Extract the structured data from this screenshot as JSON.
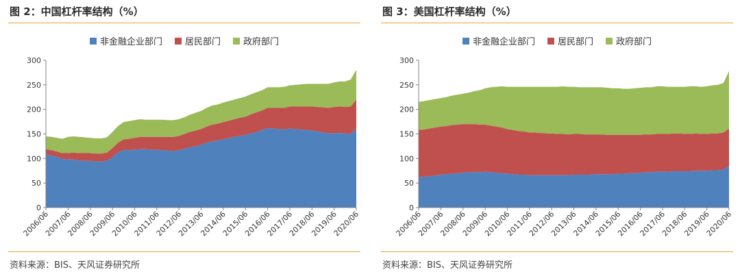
{
  "left": {
    "title": "图 2：中国杠杆率结构（%）",
    "source": "资料来源：BIS、天风证券研究所"
  },
  "right": {
    "title": "图 3：美国杠杆率结构（%）",
    "source": "资料来源：BIS、天风证券研究所"
  },
  "chart_data": [
    {
      "type": "area",
      "stacked": true,
      "title": "图 2：中国杠杆率结构（%）",
      "xlabel": "",
      "ylabel": "",
      "ylim": [
        0,
        300
      ],
      "yticks": [
        0,
        50,
        100,
        150,
        200,
        250,
        300
      ],
      "grid": false,
      "legend_placement": "top-center",
      "x_tick_labels": [
        "2006/06",
        "2007/06",
        "2008/06",
        "2009/06",
        "2010/06",
        "2011/06",
        "2012/06",
        "2013/06",
        "2014/06",
        "2015/06",
        "2016/06",
        "2017/06",
        "2018/06",
        "2019/06",
        "2020/06"
      ],
      "x": [
        "2006/06",
        "2006/09",
        "2006/12",
        "2007/03",
        "2007/06",
        "2007/09",
        "2007/12",
        "2008/03",
        "2008/06",
        "2008/09",
        "2008/12",
        "2009/03",
        "2009/06",
        "2009/09",
        "2009/12",
        "2010/03",
        "2010/06",
        "2010/09",
        "2010/12",
        "2011/03",
        "2011/06",
        "2011/09",
        "2011/12",
        "2012/03",
        "2012/06",
        "2012/09",
        "2012/12",
        "2013/03",
        "2013/06",
        "2013/09",
        "2013/12",
        "2014/03",
        "2014/06",
        "2014/09",
        "2014/12",
        "2015/03",
        "2015/06",
        "2015/09",
        "2015/12",
        "2016/03",
        "2016/06",
        "2016/09",
        "2016/12",
        "2017/03",
        "2017/06",
        "2017/09",
        "2017/12",
        "2018/03",
        "2018/06",
        "2018/09",
        "2018/12",
        "2019/03",
        "2019/06",
        "2019/09",
        "2019/12",
        "2020/03",
        "2020/06"
      ],
      "series": [
        {
          "name": "非金融企业部门",
          "color": "#4f81bd",
          "values": [
            108,
            106,
            103,
            99,
            98,
            98,
            96,
            95,
            95,
            94,
            94,
            95,
            103,
            112,
            117,
            117,
            118,
            119,
            119,
            118,
            118,
            117,
            116,
            115,
            117,
            120,
            123,
            125,
            128,
            132,
            135,
            137,
            139,
            142,
            144,
            146,
            148,
            151,
            154,
            158,
            162,
            161,
            160,
            159,
            161,
            160,
            159,
            158,
            157,
            155,
            153,
            151,
            152,
            152,
            151,
            150,
            161
          ]
        },
        {
          "name": "居民部门",
          "color": "#c0504d",
          "values": [
            11,
            11,
            11,
            12,
            13,
            14,
            15,
            16,
            16,
            16,
            16,
            17,
            18,
            20,
            22,
            23,
            24,
            25,
            25,
            26,
            26,
            27,
            28,
            29,
            29,
            30,
            31,
            32,
            32,
            33,
            34,
            34,
            35,
            35,
            36,
            37,
            37,
            39,
            40,
            40,
            41,
            42,
            43,
            44,
            45,
            46,
            47,
            48,
            49,
            50,
            51,
            52,
            53,
            54,
            54,
            56,
            59
          ]
        },
        {
          "name": "政府部门",
          "color": "#9bbb59",
          "values": [
            26,
            27,
            28,
            29,
            33,
            33,
            33,
            32,
            31,
            31,
            31,
            31,
            33,
            34,
            35,
            36,
            36,
            36,
            35,
            35,
            35,
            35,
            34,
            34,
            34,
            34,
            35,
            36,
            37,
            38,
            39,
            39,
            40,
            40,
            40,
            40,
            41,
            41,
            41,
            41,
            42,
            42,
            42,
            43,
            43,
            44,
            45,
            46,
            46,
            47,
            48,
            49,
            50,
            51,
            52,
            55,
            61
          ]
        }
      ]
    },
    {
      "type": "area",
      "stacked": true,
      "title": "图 3：美国杠杆率结构（%）",
      "xlabel": "",
      "ylabel": "",
      "ylim": [
        0,
        300
      ],
      "yticks": [
        0,
        50,
        100,
        150,
        200,
        250,
        300
      ],
      "grid": false,
      "legend_placement": "top-center",
      "x_tick_labels": [
        "2006/06",
        "2007/06",
        "2008/06",
        "2009/06",
        "2010/06",
        "2011/06",
        "2012/06",
        "2013/06",
        "2014/06",
        "2015/06",
        "2016/06",
        "2017/06",
        "2018/06",
        "2019/06",
        "2020/06"
      ],
      "x": [
        "2006/06",
        "2006/09",
        "2006/12",
        "2007/03",
        "2007/06",
        "2007/09",
        "2007/12",
        "2008/03",
        "2008/06",
        "2008/09",
        "2008/12",
        "2009/03",
        "2009/06",
        "2009/09",
        "2009/12",
        "2010/03",
        "2010/06",
        "2010/09",
        "2010/12",
        "2011/03",
        "2011/06",
        "2011/09",
        "2011/12",
        "2012/03",
        "2012/06",
        "2012/09",
        "2012/12",
        "2013/03",
        "2013/06",
        "2013/09",
        "2013/12",
        "2014/03",
        "2014/06",
        "2014/09",
        "2014/12",
        "2015/03",
        "2015/06",
        "2015/09",
        "2015/12",
        "2016/03",
        "2016/06",
        "2016/09",
        "2016/12",
        "2017/03",
        "2017/06",
        "2017/09",
        "2017/12",
        "2018/03",
        "2018/06",
        "2018/09",
        "2018/12",
        "2019/03",
        "2019/06",
        "2019/09",
        "2019/12",
        "2020/03",
        "2020/06"
      ],
      "series": [
        {
          "name": "非金融企业部门",
          "color": "#4f81bd",
          "values": [
            62,
            63,
            64,
            65,
            67,
            68,
            69,
            70,
            71,
            72,
            72,
            72,
            73,
            72,
            71,
            70,
            69,
            68,
            67,
            67,
            66,
            66,
            66,
            66,
            66,
            66,
            66,
            66,
            67,
            67,
            67,
            67,
            68,
            68,
            68,
            68,
            69,
            69,
            70,
            70,
            71,
            72,
            72,
            73,
            73,
            73,
            74,
            74,
            74,
            74,
            75,
            75,
            75,
            76,
            76,
            78,
            84
          ]
        },
        {
          "name": "居民部门",
          "color": "#c0504d",
          "values": [
            96,
            96,
            97,
            98,
            98,
            98,
            99,
            99,
            99,
            98,
            98,
            97,
            96,
            95,
            94,
            93,
            91,
            90,
            89,
            88,
            87,
            87,
            86,
            85,
            85,
            84,
            84,
            83,
            83,
            83,
            82,
            82,
            81,
            81,
            80,
            80,
            79,
            79,
            78,
            78,
            77,
            77,
            77,
            77,
            77,
            77,
            77,
            77,
            76,
            76,
            76,
            75,
            75,
            75,
            75,
            75,
            77
          ]
        },
        {
          "name": "政府部门",
          "color": "#9bbb59",
          "values": [
            57,
            58,
            58,
            58,
            58,
            59,
            60,
            61,
            62,
            64,
            67,
            70,
            74,
            78,
            81,
            84,
            86,
            88,
            90,
            91,
            93,
            93,
            94,
            95,
            95,
            96,
            97,
            97,
            96,
            95,
            96,
            96,
            96,
            96,
            96,
            95,
            95,
            94,
            94,
            95,
            96,
            96,
            96,
            97,
            97,
            96,
            95,
            95,
            96,
            97,
            96,
            96,
            97,
            98,
            99,
            101,
            117
          ]
        }
      ]
    }
  ]
}
